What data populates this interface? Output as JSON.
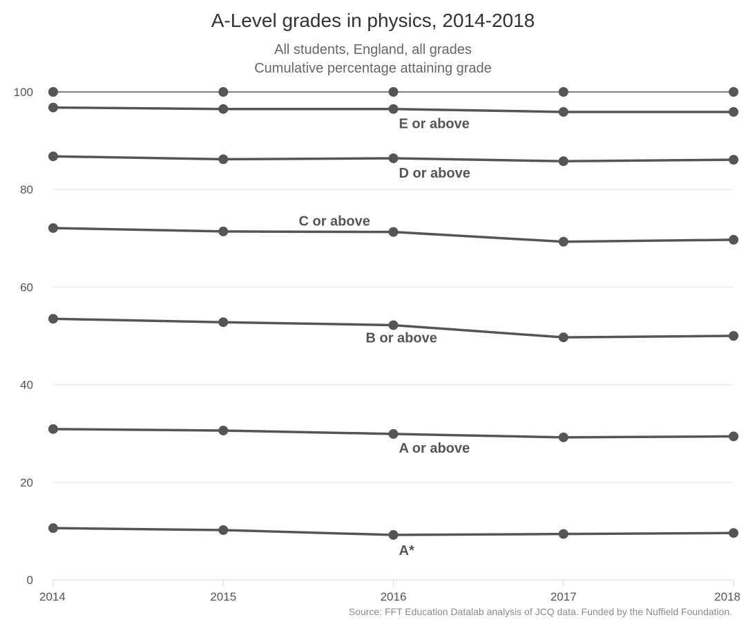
{
  "chart_data": {
    "type": "line",
    "title": "A-Level grades in physics, 2014-2018",
    "subtitle": [
      "All students, England, all grades",
      "Cumulative percentage attaining grade"
    ],
    "source": "Source: FFT Education Datalab analysis of JCQ data. Funded by the Nuffield Foundation.",
    "x": [
      "2014",
      "2015",
      "2016",
      "2017",
      "2018"
    ],
    "ylim": [
      0,
      100
    ],
    "yticks": [
      0,
      20,
      40,
      60,
      80,
      100
    ],
    "grid": true,
    "series": [
      {
        "values": [
          100,
          100,
          100,
          100,
          100
        ]
      },
      {
        "name": "E or above",
        "values": [
          96.8,
          96.5,
          96.5,
          95.9,
          95.9
        ]
      },
      {
        "name": "D or above",
        "values": [
          86.8,
          86.2,
          86.4,
          85.8,
          86.1
        ]
      },
      {
        "name": "C or above",
        "values": [
          72.1,
          71.4,
          71.3,
          69.3,
          69.7
        ]
      },
      {
        "name": "B or above",
        "values": [
          53.5,
          52.8,
          52.2,
          49.7,
          50.0
        ]
      },
      {
        "name": "A or above",
        "values": [
          30.9,
          30.6,
          29.9,
          29.2,
          29.4
        ]
      },
      {
        "name": "A*",
        "values": [
          10.6,
          10.2,
          9.2,
          9.4,
          9.6
        ]
      }
    ],
    "line_color": "#555555"
  }
}
